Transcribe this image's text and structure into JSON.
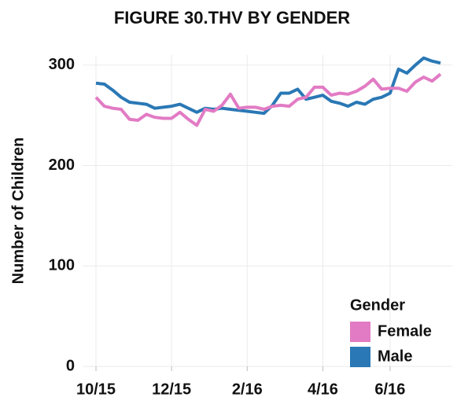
{
  "chart_data": {
    "type": "line",
    "title": "FIGURE 30.THV BY GENDER",
    "y_label": "Number of Children",
    "legend_title": "Gender",
    "legend_position": "lower right",
    "grid": true,
    "categories": [
      "10/15",
      null,
      null,
      null,
      null,
      null,
      null,
      null,
      null,
      "12/15",
      null,
      null,
      null,
      null,
      null,
      null,
      null,
      null,
      "2/16",
      null,
      null,
      null,
      null,
      null,
      null,
      null,
      null,
      "4/16",
      null,
      null,
      null,
      null,
      null,
      null,
      null,
      "6/16",
      null,
      null,
      null,
      null,
      null,
      null
    ],
    "series": [
      {
        "name": "Female",
        "color": "#e27bc4",
        "values": [
          268,
          259,
          257,
          256,
          246,
          245,
          251,
          248,
          247,
          247,
          253,
          246,
          240,
          256,
          254,
          260,
          271,
          257,
          258,
          258,
          256,
          259,
          260,
          259,
          266,
          268,
          278,
          278,
          270,
          272,
          271,
          274,
          279,
          286,
          276,
          277,
          277,
          274,
          283,
          288,
          284,
          291
        ]
      },
      {
        "name": "Male",
        "color": "#2a78b5",
        "values": [
          282,
          281,
          275,
          268,
          263,
          262,
          261,
          257,
          258,
          259,
          261,
          257,
          253,
          257,
          256,
          257,
          256,
          255,
          254,
          253,
          252,
          260,
          272,
          272,
          276,
          266,
          268,
          270,
          264,
          262,
          259,
          263,
          261,
          266,
          268,
          272,
          296,
          292,
          300,
          307,
          304,
          302
        ]
      }
    ],
    "ylim": [
      0,
      310
    ],
    "yticks": [
      0,
      100,
      200,
      300
    ]
  }
}
